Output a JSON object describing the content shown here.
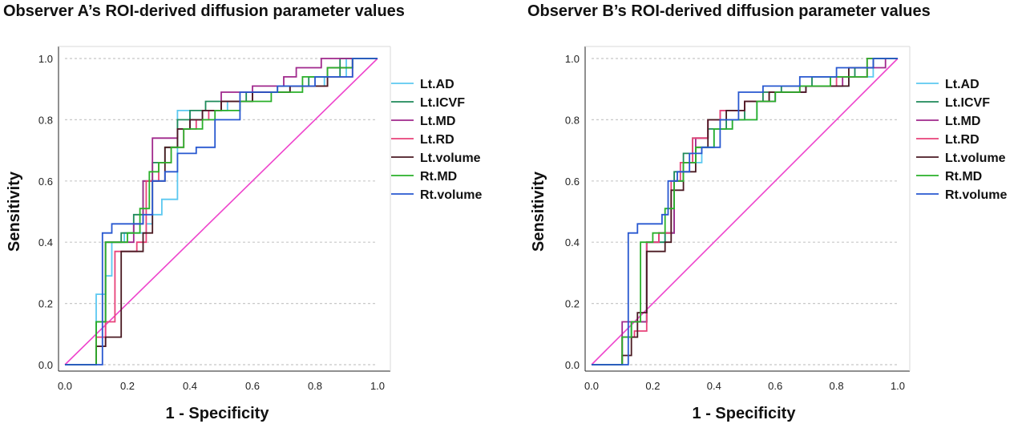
{
  "chart_data": [
    {
      "type": "line",
      "title": "Observer A’s ROI-derived diffusion parameter values",
      "xlabel": "1 - Specificity",
      "ylabel": "Sensitivity",
      "xlim": [
        0,
        1
      ],
      "ylim": [
        0,
        1
      ],
      "xticks": [
        "0.0",
        "0.2",
        "0.4",
        "0.6",
        "0.8",
        "1.0"
      ],
      "yticks": [
        "0.0",
        "0.2",
        "0.4",
        "0.6",
        "0.8",
        "1.0"
      ],
      "grid": "horizontal dashed",
      "legend": "right",
      "reference_line": {
        "x": [
          0,
          1
        ],
        "y": [
          0,
          1
        ],
        "color": "#ee44cc"
      },
      "series": [
        {
          "name": "Lt.AD",
          "color": "#5bc8f0",
          "x": [
            0.03,
            0.03,
            0.1,
            0.1,
            0.13,
            0.13,
            0.15,
            0.15,
            0.19,
            0.19,
            0.26,
            0.26,
            0.28,
            0.28,
            0.31,
            0.31,
            0.36,
            0.36,
            0.4,
            0.4,
            0.44,
            0.44,
            0.52,
            0.52,
            0.6,
            0.6,
            0.72,
            0.72,
            0.83,
            0.83,
            0.9,
            0.9,
            1.0
          ],
          "y": [
            0.0,
            0.0,
            0.0,
            0.23,
            0.23,
            0.29,
            0.29,
            0.4,
            0.4,
            0.43,
            0.43,
            0.46,
            0.46,
            0.49,
            0.49,
            0.54,
            0.54,
            0.83,
            0.83,
            0.8,
            0.8,
            0.83,
            0.83,
            0.86,
            0.86,
            0.89,
            0.89,
            0.91,
            0.91,
            0.94,
            0.94,
            1.0,
            1.0
          ]
        },
        {
          "name": "Lt.ICVF",
          "color": "#1e8a5a",
          "x": [
            0.05,
            0.05,
            0.1,
            0.1,
            0.13,
            0.13,
            0.18,
            0.18,
            0.22,
            0.22,
            0.25,
            0.25,
            0.28,
            0.28,
            0.32,
            0.32,
            0.36,
            0.36,
            0.4,
            0.4,
            0.45,
            0.45,
            0.5,
            0.5,
            0.58,
            0.58,
            0.68,
            0.68,
            0.78,
            0.78,
            0.88,
            0.88,
            1.0
          ],
          "y": [
            0.0,
            0.0,
            0.0,
            0.14,
            0.14,
            0.4,
            0.4,
            0.43,
            0.43,
            0.49,
            0.49,
            0.6,
            0.6,
            0.66,
            0.66,
            0.71,
            0.71,
            0.8,
            0.8,
            0.83,
            0.83,
            0.86,
            0.86,
            0.86,
            0.86,
            0.89,
            0.89,
            0.91,
            0.91,
            0.94,
            0.94,
            1.0,
            1.0
          ]
        },
        {
          "name": "Lt.MD",
          "color": "#a0288c",
          "x": [
            0.03,
            0.03,
            0.1,
            0.1,
            0.13,
            0.13,
            0.18,
            0.18,
            0.22,
            0.22,
            0.25,
            0.25,
            0.28,
            0.28,
            0.36,
            0.36,
            0.4,
            0.4,
            0.44,
            0.44,
            0.5,
            0.5,
            0.6,
            0.6,
            0.7,
            0.7,
            0.74,
            0.74,
            0.82,
            0.82,
            0.86,
            1.0
          ],
          "y": [
            0.0,
            0.0,
            0.0,
            0.06,
            0.06,
            0.4,
            0.4,
            0.4,
            0.4,
            0.46,
            0.46,
            0.6,
            0.6,
            0.74,
            0.74,
            0.77,
            0.77,
            0.8,
            0.8,
            0.83,
            0.83,
            0.89,
            0.89,
            0.91,
            0.91,
            0.94,
            0.94,
            0.97,
            0.97,
            1.0,
            1.0,
            1.0
          ]
        },
        {
          "name": "Lt.RD",
          "color": "#e8437a",
          "x": [
            0.03,
            0.03,
            0.1,
            0.1,
            0.13,
            0.13,
            0.16,
            0.16,
            0.23,
            0.23,
            0.26,
            0.26,
            0.3,
            0.3,
            0.34,
            0.34,
            0.38,
            0.38,
            0.42,
            0.42,
            0.46,
            0.46,
            0.5,
            0.5,
            0.6,
            0.6,
            0.72,
            0.72,
            0.84,
            0.84,
            0.92,
            0.92,
            1.0
          ],
          "y": [
            0.0,
            0.0,
            0.0,
            0.09,
            0.09,
            0.14,
            0.14,
            0.37,
            0.37,
            0.4,
            0.4,
            0.6,
            0.6,
            0.66,
            0.66,
            0.71,
            0.71,
            0.77,
            0.77,
            0.8,
            0.8,
            0.83,
            0.83,
            0.86,
            0.86,
            0.89,
            0.89,
            0.91,
            0.91,
            0.94,
            0.94,
            1.0,
            1.0
          ]
        },
        {
          "name": "Lt.volume",
          "color": "#4a1a22",
          "x": [
            0.03,
            0.03,
            0.1,
            0.1,
            0.13,
            0.13,
            0.18,
            0.18,
            0.25,
            0.25,
            0.28,
            0.28,
            0.32,
            0.32,
            0.36,
            0.36,
            0.4,
            0.4,
            0.44,
            0.44,
            0.5,
            0.5,
            0.6,
            0.6,
            0.72,
            0.72,
            0.84,
            0.84,
            0.92,
            0.92,
            1.0
          ],
          "y": [
            0.0,
            0.0,
            0.0,
            0.06,
            0.06,
            0.09,
            0.09,
            0.37,
            0.37,
            0.43,
            0.43,
            0.6,
            0.6,
            0.71,
            0.71,
            0.77,
            0.77,
            0.8,
            0.8,
            0.83,
            0.83,
            0.86,
            0.86,
            0.89,
            0.89,
            0.91,
            0.91,
            0.97,
            0.97,
            1.0,
            1.0
          ]
        },
        {
          "name": "Rt.MD",
          "color": "#2ab02a",
          "x": [
            0.05,
            0.05,
            0.1,
            0.1,
            0.13,
            0.13,
            0.2,
            0.2,
            0.24,
            0.24,
            0.27,
            0.27,
            0.3,
            0.3,
            0.34,
            0.34,
            0.38,
            0.38,
            0.44,
            0.44,
            0.48,
            0.48,
            0.56,
            0.56,
            0.66,
            0.66,
            0.76,
            0.76,
            0.84,
            0.84,
            0.92,
            0.92,
            1.0
          ],
          "y": [
            0.0,
            0.0,
            0.0,
            0.14,
            0.14,
            0.4,
            0.4,
            0.43,
            0.43,
            0.51,
            0.51,
            0.63,
            0.63,
            0.66,
            0.66,
            0.71,
            0.71,
            0.77,
            0.77,
            0.8,
            0.8,
            0.83,
            0.83,
            0.86,
            0.86,
            0.89,
            0.89,
            0.94,
            0.94,
            0.97,
            0.97,
            1.0,
            1.0
          ]
        },
        {
          "name": "Rt.volume",
          "color": "#2858d0",
          "x": [
            0.03,
            0.03,
            0.1,
            0.1,
            0.12,
            0.12,
            0.15,
            0.15,
            0.23,
            0.23,
            0.25,
            0.25,
            0.28,
            0.28,
            0.32,
            0.32,
            0.36,
            0.36,
            0.42,
            0.42,
            0.48,
            0.48,
            0.56,
            0.56,
            0.68,
            0.68,
            0.8,
            0.8,
            0.92,
            0.92,
            1.0
          ],
          "y": [
            0.0,
            0.0,
            0.0,
            0.0,
            0.0,
            0.43,
            0.43,
            0.46,
            0.46,
            0.46,
            0.46,
            0.49,
            0.49,
            0.6,
            0.6,
            0.63,
            0.63,
            0.69,
            0.69,
            0.71,
            0.71,
            0.8,
            0.8,
            0.89,
            0.89,
            0.91,
            0.91,
            0.94,
            0.94,
            1.0,
            1.0
          ]
        }
      ]
    },
    {
      "type": "line",
      "title": "Observer B’s ROI-derived diffusion parameter values",
      "xlabel": "1 - Specificity",
      "ylabel": "Sensitivity",
      "xlim": [
        0,
        1
      ],
      "ylim": [
        0,
        1
      ],
      "xticks": [
        "0.0",
        "0.2",
        "0.4",
        "0.6",
        "0.8",
        "1.0"
      ],
      "yticks": [
        "0.0",
        "0.2",
        "0.4",
        "0.6",
        "0.8",
        "1.0"
      ],
      "grid": "horizontal dashed",
      "legend": "right",
      "reference_line": {
        "x": [
          0,
          1
        ],
        "y": [
          0,
          1
        ],
        "color": "#ee44cc"
      },
      "series": [
        {
          "name": "Lt.AD",
          "color": "#5bc8f0",
          "x": [
            0.1,
            0.1,
            0.13,
            0.13,
            0.18,
            0.18,
            0.24,
            0.24,
            0.27,
            0.27,
            0.3,
            0.3,
            0.36,
            0.36,
            0.4,
            0.4,
            0.46,
            0.46,
            0.54,
            0.54,
            0.6,
            0.6,
            0.7,
            0.7,
            0.84,
            0.84,
            0.92,
            0.92,
            1.0
          ],
          "y": [
            0.0,
            0.09,
            0.09,
            0.14,
            0.14,
            0.4,
            0.4,
            0.43,
            0.43,
            0.6,
            0.6,
            0.66,
            0.66,
            0.71,
            0.71,
            0.77,
            0.77,
            0.8,
            0.8,
            0.86,
            0.86,
            0.89,
            0.89,
            0.91,
            0.91,
            0.94,
            0.94,
            1.0,
            1.0
          ]
        },
        {
          "name": "Lt.ICVF",
          "color": "#1e8a5a",
          "x": [
            0.1,
            0.1,
            0.13,
            0.13,
            0.18,
            0.18,
            0.24,
            0.24,
            0.27,
            0.27,
            0.3,
            0.3,
            0.33,
            0.33,
            0.38,
            0.38,
            0.44,
            0.44,
            0.5,
            0.5,
            0.56,
            0.56,
            0.62,
            0.62,
            0.72,
            0.72,
            0.86,
            0.86,
            0.92,
            0.92,
            1.0
          ],
          "y": [
            0.0,
            0.09,
            0.09,
            0.14,
            0.14,
            0.4,
            0.4,
            0.43,
            0.43,
            0.63,
            0.63,
            0.69,
            0.69,
            0.74,
            0.74,
            0.77,
            0.77,
            0.8,
            0.8,
            0.86,
            0.86,
            0.89,
            0.89,
            0.91,
            0.91,
            0.94,
            0.94,
            0.97,
            0.97,
            1.0,
            1.0
          ]
        },
        {
          "name": "Lt.MD",
          "color": "#a0288c",
          "x": [
            0.1,
            0.1,
            0.14,
            0.14,
            0.18,
            0.18,
            0.22,
            0.22,
            0.27,
            0.27,
            0.3,
            0.3,
            0.34,
            0.34,
            0.38,
            0.38,
            0.42,
            0.42,
            0.5,
            0.5,
            0.6,
            0.6,
            0.7,
            0.7,
            0.82,
            0.82,
            0.9,
            0.9,
            0.96,
            0.96,
            1.0
          ],
          "y": [
            0.0,
            0.14,
            0.14,
            0.14,
            0.14,
            0.4,
            0.4,
            0.43,
            0.43,
            0.6,
            0.6,
            0.66,
            0.66,
            0.74,
            0.74,
            0.8,
            0.8,
            0.83,
            0.83,
            0.86,
            0.86,
            0.89,
            0.89,
            0.91,
            0.91,
            0.94,
            0.94,
            0.97,
            0.97,
            1.0,
            1.0
          ]
        },
        {
          "name": "Lt.RD",
          "color": "#e8437a",
          "x": [
            0.1,
            0.1,
            0.14,
            0.14,
            0.18,
            0.18,
            0.22,
            0.22,
            0.26,
            0.26,
            0.29,
            0.29,
            0.33,
            0.33,
            0.38,
            0.38,
            0.42,
            0.42,
            0.5,
            0.5,
            0.58,
            0.58,
            0.68,
            0.68,
            0.8,
            0.8,
            0.9,
            0.9,
            1.0
          ],
          "y": [
            0.0,
            0.09,
            0.09,
            0.11,
            0.11,
            0.4,
            0.4,
            0.43,
            0.43,
            0.6,
            0.6,
            0.66,
            0.66,
            0.74,
            0.74,
            0.8,
            0.8,
            0.83,
            0.83,
            0.86,
            0.86,
            0.89,
            0.89,
            0.91,
            0.91,
            0.94,
            0.94,
            1.0,
            1.0
          ]
        },
        {
          "name": "Lt.volume",
          "color": "#4a1a22",
          "x": [
            0.1,
            0.1,
            0.13,
            0.13,
            0.15,
            0.15,
            0.18,
            0.18,
            0.24,
            0.24,
            0.26,
            0.26,
            0.3,
            0.3,
            0.34,
            0.34,
            0.38,
            0.38,
            0.44,
            0.44,
            0.5,
            0.5,
            0.58,
            0.58,
            0.7,
            0.7,
            0.84,
            0.84,
            0.92,
            0.92,
            1.0
          ],
          "y": [
            0.0,
            0.03,
            0.03,
            0.09,
            0.09,
            0.17,
            0.17,
            0.37,
            0.37,
            0.4,
            0.4,
            0.57,
            0.57,
            0.63,
            0.63,
            0.71,
            0.71,
            0.8,
            0.8,
            0.83,
            0.83,
            0.86,
            0.86,
            0.89,
            0.89,
            0.91,
            0.91,
            0.97,
            0.97,
            1.0,
            1.0
          ]
        },
        {
          "name": "Rt.MD",
          "color": "#2ab02a",
          "x": [
            0.1,
            0.1,
            0.13,
            0.13,
            0.16,
            0.16,
            0.2,
            0.2,
            0.24,
            0.24,
            0.27,
            0.27,
            0.3,
            0.3,
            0.34,
            0.34,
            0.4,
            0.4,
            0.46,
            0.46,
            0.54,
            0.54,
            0.6,
            0.6,
            0.68,
            0.68,
            0.78,
            0.78,
            0.9,
            0.9,
            1.0
          ],
          "y": [
            0.0,
            0.09,
            0.09,
            0.14,
            0.14,
            0.4,
            0.4,
            0.43,
            0.43,
            0.51,
            0.51,
            0.6,
            0.6,
            0.66,
            0.66,
            0.71,
            0.71,
            0.77,
            0.77,
            0.8,
            0.8,
            0.86,
            0.86,
            0.89,
            0.89,
            0.91,
            0.91,
            0.94,
            0.94,
            1.0,
            1.0
          ]
        },
        {
          "name": "Rt.volume",
          "color": "#2858d0",
          "x": [
            0.1,
            0.1,
            0.12,
            0.12,
            0.15,
            0.15,
            0.23,
            0.23,
            0.25,
            0.25,
            0.28,
            0.28,
            0.32,
            0.32,
            0.36,
            0.36,
            0.42,
            0.42,
            0.48,
            0.48,
            0.56,
            0.56,
            0.68,
            0.68,
            0.8,
            0.8,
            0.92,
            0.92,
            1.0
          ],
          "y": [
            0.0,
            0.0,
            0.0,
            0.43,
            0.43,
            0.46,
            0.46,
            0.49,
            0.49,
            0.6,
            0.6,
            0.63,
            0.63,
            0.69,
            0.69,
            0.71,
            0.71,
            0.8,
            0.8,
            0.89,
            0.89,
            0.91,
            0.91,
            0.94,
            0.94,
            0.97,
            0.97,
            1.0,
            1.0
          ]
        }
      ]
    }
  ]
}
